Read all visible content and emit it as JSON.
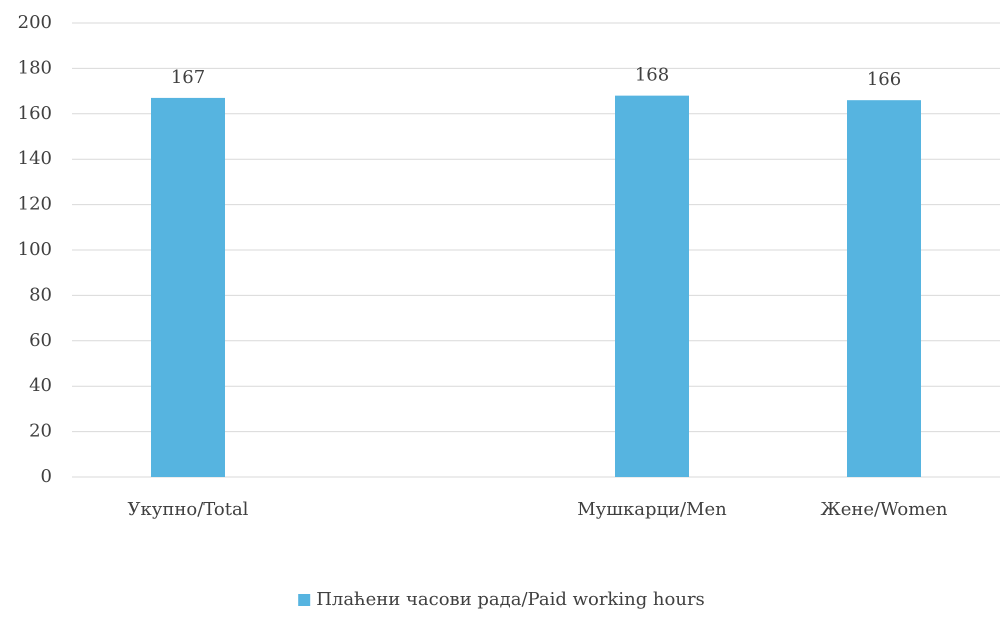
{
  "chart_data": {
    "type": "bar",
    "categories": [
      "Укупно/Total",
      null,
      "Мушкарци/Men",
      "Жене/Women"
    ],
    "series": [
      {
        "name": "Плаћени часови рада/Paid working hours",
        "color": "#56b4e0",
        "values": [
          167,
          null,
          168,
          166
        ]
      }
    ],
    "ylim": [
      0,
      200
    ],
    "yticks": [
      0,
      20,
      40,
      60,
      80,
      100,
      120,
      140,
      160,
      180,
      200
    ],
    "grid": true,
    "data_labels": true,
    "legend": "bottom"
  }
}
